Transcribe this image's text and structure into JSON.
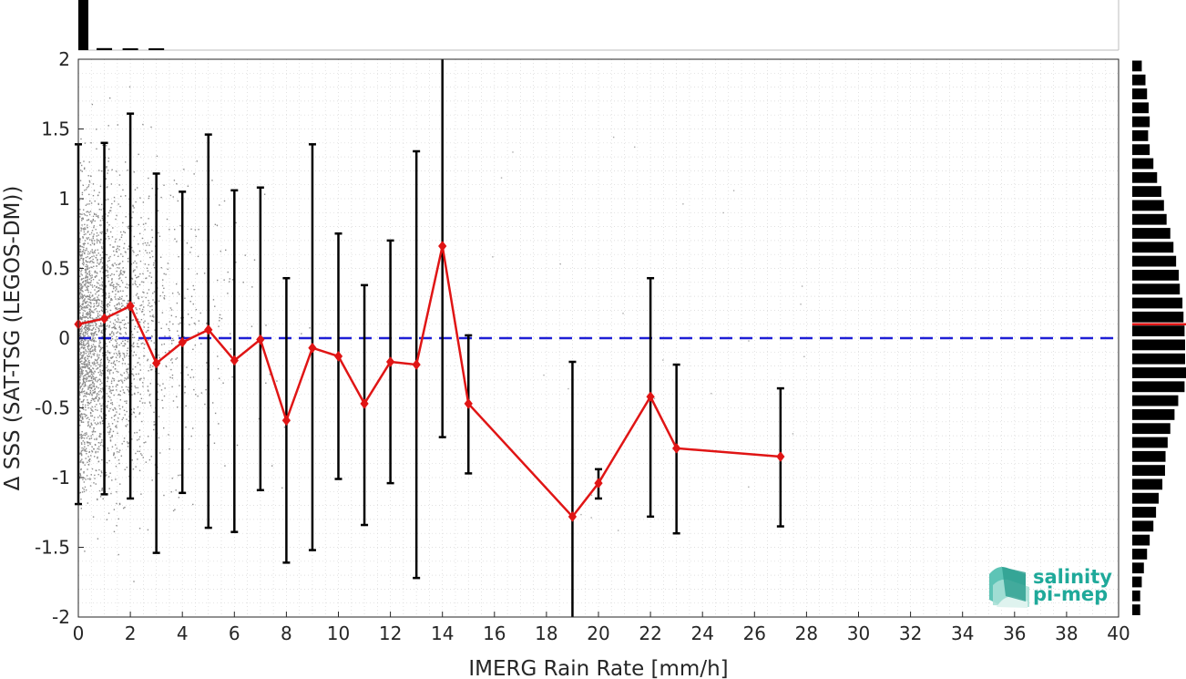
{
  "chart_data": {
    "type": "scatter",
    "title": "",
    "xlabel": "IMERG Rain Rate [mm/h]",
    "ylabel": "Δ SSS (SAT-TSG (LEGOS-DM))",
    "xlim": [
      0,
      40
    ],
    "ylim": [
      -2,
      2
    ],
    "x_ticks": [
      "0",
      "2",
      "4",
      "6",
      "8",
      "10",
      "12",
      "14",
      "16",
      "18",
      "20",
      "22",
      "24",
      "26",
      "28",
      "30",
      "32",
      "34",
      "36",
      "38",
      "40"
    ],
    "y_ticks": [
      "-2",
      "-1.5",
      "-1",
      "-0.5",
      "0",
      "0.5",
      "1",
      "1.5",
      "2"
    ],
    "grid": true,
    "zero_line": {
      "y": 0,
      "color": "#1f1fd6",
      "style": "dashed"
    },
    "series": [
      {
        "type": "line-errorbar",
        "color": "#e01515",
        "errorbar_color": "#000000",
        "x": [
          0,
          1,
          2,
          3,
          4,
          5,
          6,
          7,
          8,
          9,
          10,
          11,
          12,
          13,
          14,
          15,
          19,
          20,
          22,
          23,
          27
        ],
        "mean": [
          0.1,
          0.14,
          0.23,
          -0.18,
          -0.03,
          0.06,
          -0.16,
          -0.01,
          -0.59,
          -0.07,
          -0.13,
          -0.47,
          -0.17,
          -0.19,
          0.66,
          -0.47,
          -1.28,
          -1.04,
          -0.42,
          -0.79,
          -0.85
        ],
        "lower": [
          -1.19,
          -1.12,
          -1.15,
          -1.54,
          -1.11,
          -1.36,
          -1.39,
          -1.09,
          -1.61,
          -1.52,
          -1.01,
          -1.34,
          -1.04,
          -1.72,
          -0.71,
          -0.97,
          -2.0,
          -1.15,
          -1.28,
          -1.4,
          -1.35
        ],
        "upper": [
          1.39,
          1.4,
          1.61,
          1.18,
          1.05,
          1.46,
          1.06,
          1.08,
          0.43,
          1.39,
          0.75,
          0.38,
          0.7,
          1.34,
          2.0,
          0.02,
          -0.17,
          -0.94,
          0.43,
          -0.19,
          -0.36
        ]
      }
    ],
    "raw_points_color": "#8a8a8a",
    "x_histogram": {
      "color": "#000000",
      "bins_x": [
        0.15,
        1.0,
        2.0,
        3.0
      ],
      "relative_heights": [
        1.0,
        0.04,
        0.025,
        0.015
      ]
    },
    "y_histogram": {
      "color": "#000000",
      "mean_marker_color": "#e01515",
      "mean_marker_y": 0.1,
      "bins_y": [
        1.95,
        1.85,
        1.75,
        1.65,
        1.55,
        1.45,
        1.35,
        1.25,
        1.15,
        1.05,
        0.95,
        0.85,
        0.75,
        0.65,
        0.55,
        0.45,
        0.35,
        0.25,
        0.15,
        0.05,
        -0.05,
        -0.15,
        -0.25,
        -0.35,
        -0.45,
        -0.55,
        -0.65,
        -0.75,
        -0.85,
        -0.95,
        -1.05,
        -1.15,
        -1.25,
        -1.35,
        -1.45,
        -1.55,
        -1.65,
        -1.75,
        -1.85,
        -1.95
      ],
      "relative_counts": [
        0.18,
        0.25,
        0.28,
        0.31,
        0.33,
        0.3,
        0.33,
        0.4,
        0.47,
        0.55,
        0.6,
        0.65,
        0.72,
        0.78,
        0.83,
        0.88,
        0.9,
        0.95,
        0.97,
        0.99,
        1.0,
        1.0,
        1.03,
        0.99,
        0.87,
        0.8,
        0.72,
        0.67,
        0.63,
        0.62,
        0.57,
        0.5,
        0.45,
        0.4,
        0.33,
        0.28,
        0.22,
        0.18,
        0.15,
        0.15
      ]
    },
    "logo": {
      "line1": "salinity",
      "line2": "pi-mep"
    }
  }
}
